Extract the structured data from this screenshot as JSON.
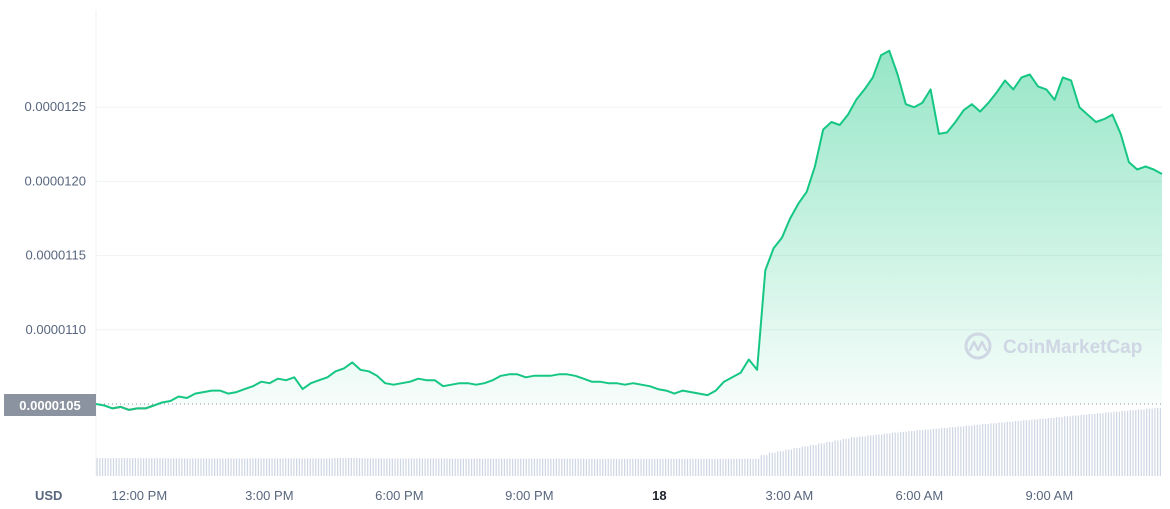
{
  "chart_data": {
    "type": "area",
    "currency": "USD",
    "yticks": [
      "0.0000125",
      "0.0000120",
      "0.0000115",
      "0.0000110"
    ],
    "ytick_values": [
      1.25e-05,
      1.2e-05,
      1.15e-05,
      1.1e-05
    ],
    "ylim": [
      9.9e-06,
      1.3e-05
    ],
    "current_price_label": "0.0000105",
    "baseline": 1.05e-05,
    "xlim": [
      11.0,
      35.6
    ],
    "xticks": [
      {
        "label": "12:00 PM",
        "t": 12
      },
      {
        "label": "3:00 PM",
        "t": 15
      },
      {
        "label": "6:00 PM",
        "t": 18
      },
      {
        "label": "9:00 PM",
        "t": 21
      },
      {
        "label": "18",
        "t": 24,
        "bold": true
      },
      {
        "label": "3:00 AM",
        "t": 27
      },
      {
        "label": "6:00 AM",
        "t": 30
      },
      {
        "label": "9:00 AM",
        "t": 33
      }
    ],
    "x_unit": "hour",
    "y": [
      1.05e-05,
      1.049e-05,
      1.047e-05,
      1.048e-05,
      1.046e-05,
      1.047e-05,
      1.047e-05,
      1.049e-05,
      1.051e-05,
      1.052e-05,
      1.055e-05,
      1.054e-05,
      1.057e-05,
      1.058e-05,
      1.059e-05,
      1.059e-05,
      1.057e-05,
      1.058e-05,
      1.06e-05,
      1.062e-05,
      1.065e-05,
      1.064e-05,
      1.067e-05,
      1.066e-05,
      1.068e-05,
      1.06e-05,
      1.064e-05,
      1.066e-05,
      1.068e-05,
      1.072e-05,
      1.074e-05,
      1.078e-05,
      1.073e-05,
      1.072e-05,
      1.069e-05,
      1.064e-05,
      1.063e-05,
      1.064e-05,
      1.065e-05,
      1.067e-05,
      1.066e-05,
      1.066e-05,
      1.062e-05,
      1.063e-05,
      1.064e-05,
      1.064e-05,
      1.063e-05,
      1.064e-05,
      1.066e-05,
      1.069e-05,
      1.07e-05,
      1.07e-05,
      1.068e-05,
      1.069e-05,
      1.069e-05,
      1.069e-05,
      1.07e-05,
      1.07e-05,
      1.069e-05,
      1.067e-05,
      1.065e-05,
      1.065e-05,
      1.064e-05,
      1.064e-05,
      1.063e-05,
      1.064e-05,
      1.063e-05,
      1.062e-05,
      1.06e-05,
      1.059e-05,
      1.057e-05,
      1.059e-05,
      1.058e-05,
      1.057e-05,
      1.056e-05,
      1.059e-05,
      1.065e-05,
      1.068e-05,
      1.071e-05,
      1.08e-05,
      1.073e-05,
      1.14e-05,
      1.155e-05,
      1.162e-05,
      1.175e-05,
      1.185e-05,
      1.193e-05,
      1.21e-05,
      1.235e-05,
      1.24e-05,
      1.238e-05,
      1.245e-05,
      1.255e-05,
      1.262e-05,
      1.27e-05,
      1.285e-05,
      1.288e-05,
      1.272e-05,
      1.252e-05,
      1.25e-05,
      1.253e-05,
      1.262e-05,
      1.232e-05,
      1.233e-05,
      1.24e-05,
      1.248e-05,
      1.252e-05,
      1.247e-05,
      1.253e-05,
      1.26e-05,
      1.268e-05,
      1.262e-05,
      1.27e-05,
      1.272e-05,
      1.264e-05,
      1.262e-05,
      1.255e-05,
      1.27e-05,
      1.268e-05,
      1.25e-05,
      1.245e-05,
      1.24e-05,
      1.242e-05,
      1.245e-05,
      1.232e-05,
      1.213e-05,
      1.208e-05,
      1.21e-05,
      1.208e-05,
      1.205e-05
    ],
    "volume": [
      0.115,
      0.115,
      0.115,
      0.115,
      0.115,
      0.115,
      0.115,
      0.115,
      0.115,
      0.114,
      0.114,
      0.113,
      0.113,
      0.113,
      0.113,
      0.113,
      0.113,
      0.113,
      0.113,
      0.114,
      0.114,
      0.114,
      0.114,
      0.114,
      0.114,
      0.114,
      0.114,
      0.114,
      0.114,
      0.116,
      0.116,
      0.116,
      0.115,
      0.114,
      0.114,
      0.113,
      0.113,
      0.113,
      0.113,
      0.113,
      0.113,
      0.113,
      0.113,
      0.112,
      0.112,
      0.112,
      0.112,
      0.112,
      0.112,
      0.112,
      0.112,
      0.112,
      0.112,
      0.112,
      0.112,
      0.112,
      0.112,
      0.112,
      0.112,
      0.111,
      0.111,
      0.111,
      0.111,
      0.111,
      0.111,
      0.111,
      0.111,
      0.111,
      0.111,
      0.111,
      0.111,
      0.111,
      0.111,
      0.111,
      0.111,
      0.111,
      0.111,
      0.111,
      0.111,
      0.111,
      0.111,
      0.135,
      0.15,
      0.16,
      0.17,
      0.18,
      0.19,
      0.2,
      0.21,
      0.22,
      0.23,
      0.24,
      0.25,
      0.255,
      0.262,
      0.268,
      0.274,
      0.28,
      0.285,
      0.29,
      0.295,
      0.3,
      0.305,
      0.31,
      0.315,
      0.32,
      0.325,
      0.33,
      0.335,
      0.34,
      0.345,
      0.35,
      0.355,
      0.36,
      0.365,
      0.37,
      0.375,
      0.38,
      0.385,
      0.39,
      0.395,
      0.4,
      0.405,
      0.41,
      0.415,
      0.42,
      0.425,
      0.43,
      0.435,
      0.44
    ],
    "grid": "horizontal",
    "colors": {
      "line_up": "#16c784",
      "line_down": "#ea3943",
      "fill": "#16c784",
      "label_bg": "#8a939f",
      "volume": "#cfd6e4"
    }
  },
  "watermark": {
    "text": "CoinMarketCap",
    "icon": "coinmarketcap-logo-icon"
  }
}
